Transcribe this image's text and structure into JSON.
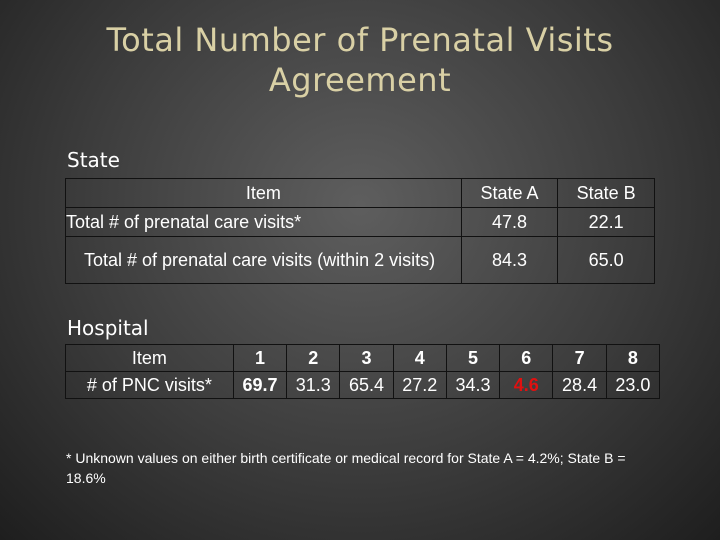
{
  "title": [
    "Total Number of Prenatal Visits",
    "Agreement"
  ],
  "state": {
    "section_label": "State",
    "header": {
      "item": "Item",
      "state_a": "State A",
      "state_b": "State B"
    },
    "rows": [
      {
        "item": "Total # of prenatal care visits*",
        "state_a": "47.8",
        "state_b": "22.1"
      },
      {
        "item": "Total # of prenatal care visits (within 2 visits)",
        "state_a": "84.3",
        "state_b": "65.0"
      }
    ]
  },
  "hospital": {
    "section_label": "Hospital",
    "header": {
      "item": "Item",
      "numbers": [
        "1",
        "2",
        "3",
        "4",
        "5",
        "6",
        "7",
        "8"
      ]
    },
    "row": {
      "label": "# of PNC visits*",
      "values": [
        "69.7",
        "31.3",
        "65.4",
        "27.2",
        "34.3",
        "4.6",
        "28.4",
        "23.0"
      ]
    },
    "highlight_color": "#e01010"
  },
  "footnote": "* Unknown values on either birth certificate or medical record for State A = 4.2%; State B = 18.6%"
}
